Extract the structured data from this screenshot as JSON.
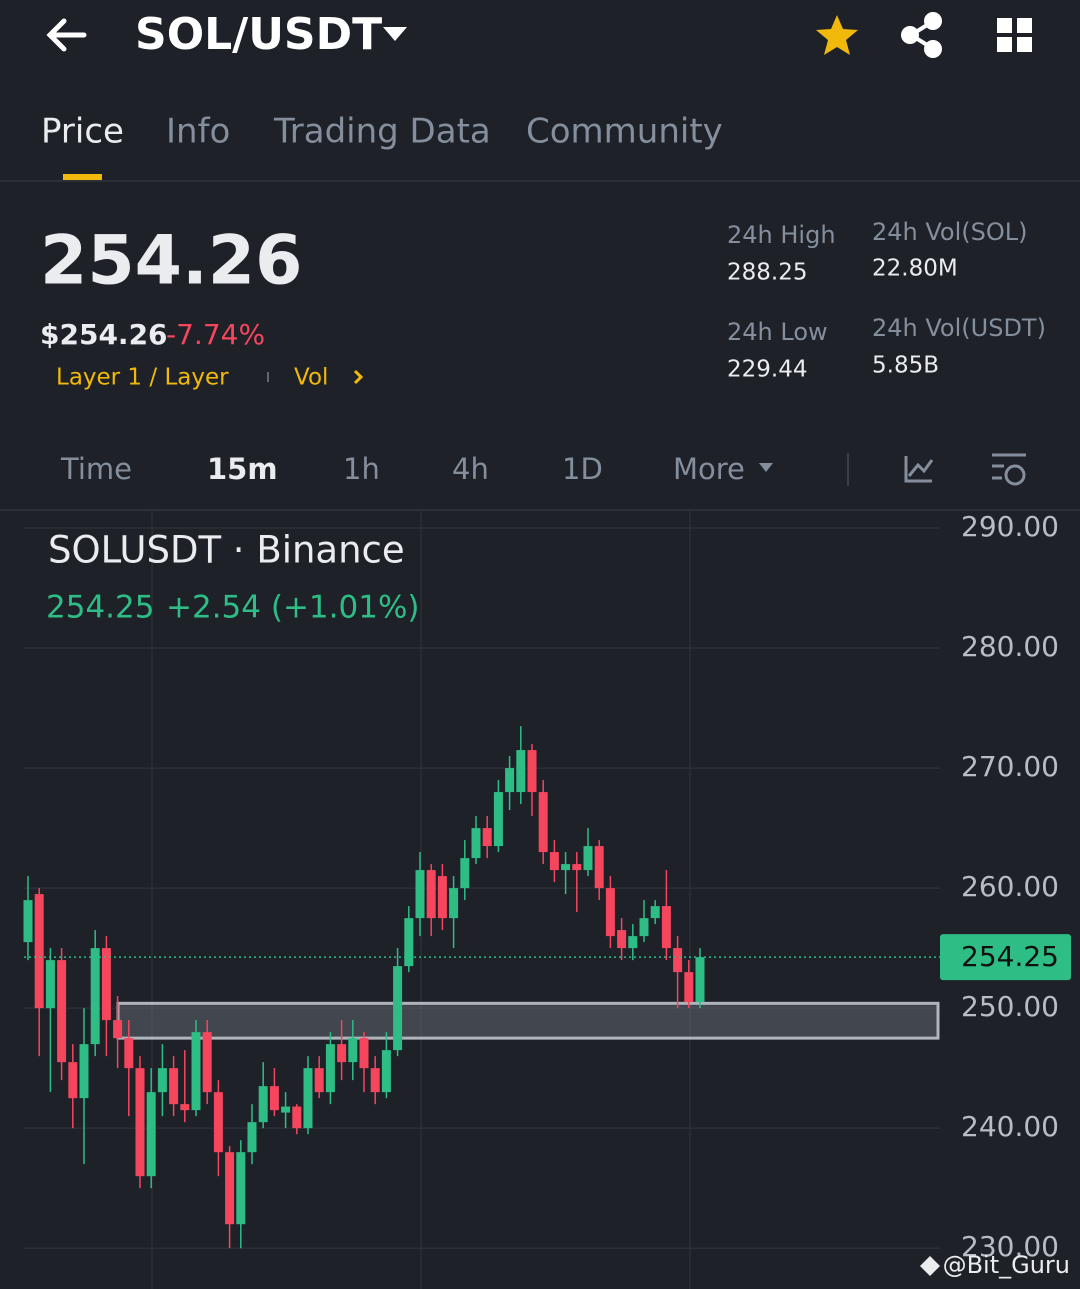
{
  "header": {
    "title": "SOL/USDT"
  },
  "tabs": [
    "Price",
    "Info",
    "Trading Data",
    "Community"
  ],
  "price": {
    "last": "254.26",
    "usd": "$254.26",
    "change": "-7.74%",
    "tags": [
      "Layer 1 / Layer",
      "Vol"
    ]
  },
  "stats": [
    {
      "label": "24h High",
      "value": "288.25"
    },
    {
      "label": "24h Low",
      "value": "229.44"
    },
    {
      "label": "24h Vol(SOL)",
      "value": "22.80M"
    },
    {
      "label": "24h Vol(USDT)",
      "value": "5.85B"
    }
  ],
  "intervals": [
    "Time",
    "15m",
    "1h",
    "4h",
    "1D",
    "More"
  ],
  "chart_data": {
    "type": "candlestick",
    "title": "SOLUSDT · Binance",
    "legend": [
      "254.25",
      "+2.54 (+1.01%)"
    ],
    "up_color": "#2ebd85",
    "down_color": "#f6465d",
    "open": [
      255.5,
      259.5,
      250,
      254,
      245.5,
      242.5,
      247,
      255,
      249,
      247.5,
      245,
      236,
      243,
      245,
      242,
      241.5,
      248,
      243,
      238,
      232,
      238,
      240.5,
      243.5,
      241.3,
      241.8,
      240,
      245,
      243,
      247,
      245.5,
      247.5,
      245,
      243,
      246.5,
      253.5,
      257.5,
      261.5,
      261,
      257.5,
      260,
      262.5,
      265,
      263.5,
      268,
      268,
      271.5,
      268,
      263,
      261.5,
      262,
      261.5,
      263.5,
      260,
      256.5,
      255,
      256,
      257.5,
      258.5,
      255,
      253,
      250.5
    ],
    "high": [
      261,
      260,
      255,
      255,
      247,
      250,
      256.5,
      256,
      251,
      249,
      246,
      245,
      247,
      246,
      246.5,
      249,
      249,
      244,
      238.5,
      239,
      242,
      245.5,
      245,
      243,
      242,
      246,
      246,
      248,
      249,
      249,
      248,
      246,
      248,
      255,
      258.5,
      263,
      262,
      262,
      261,
      264,
      266,
      266,
      269,
      271,
      273.5,
      272,
      269,
      264,
      263,
      263,
      265,
      264,
      261,
      257.5,
      257,
      259,
      259,
      261.5,
      256,
      254,
      255
    ],
    "low": [
      254,
      246,
      243,
      244,
      240,
      237,
      246,
      246,
      245,
      241,
      235,
      235,
      241,
      241,
      240.5,
      241,
      242,
      236,
      230,
      230,
      237,
      240,
      241,
      240,
      239.5,
      239.5,
      242.5,
      242,
      244,
      244,
      243,
      242,
      242.5,
      246,
      253,
      256,
      256,
      256.5,
      255,
      259,
      262,
      262.5,
      263,
      266.5,
      267,
      266,
      262,
      260.5,
      259.5,
      258,
      261,
      259,
      255,
      254,
      254,
      255.5,
      257,
      254,
      250,
      250,
      250
    ],
    "close": [
      259,
      250,
      254,
      245.5,
      242.5,
      247,
      255,
      249,
      247.5,
      245,
      236,
      243,
      245,
      242,
      241.5,
      248,
      243,
      238,
      232,
      238,
      240.5,
      243.5,
      241.5,
      241.8,
      240,
      245,
      243,
      247,
      245.5,
      247.5,
      245,
      243,
      246.5,
      253.5,
      257.5,
      261.5,
      257.5,
      257.5,
      260,
      262.5,
      265,
      263.5,
      268,
      270,
      271.5,
      268,
      263,
      261.5,
      262,
      261.5,
      263.5,
      260,
      256,
      255,
      256,
      257.5,
      258.5,
      255,
      253,
      250.5,
      254.25
    ],
    "last_price": 254.25,
    "zone": [
      250.4,
      247.5
    ],
    "ylim": [
      226.6,
      291.5
    ],
    "yticks": [
      {
        "value": 230,
        "label": "230.00"
      },
      {
        "value": 240,
        "label": "240.00"
      },
      {
        "value": 250,
        "label": "250.00"
      },
      {
        "value": 260,
        "label": "260.00"
      },
      {
        "value": 270,
        "label": "270.00"
      },
      {
        "value": 280,
        "label": "280.00"
      },
      {
        "value": 290,
        "label": "290.00"
      }
    ],
    "grid": true
  },
  "watermark": "@Bit_Guru"
}
